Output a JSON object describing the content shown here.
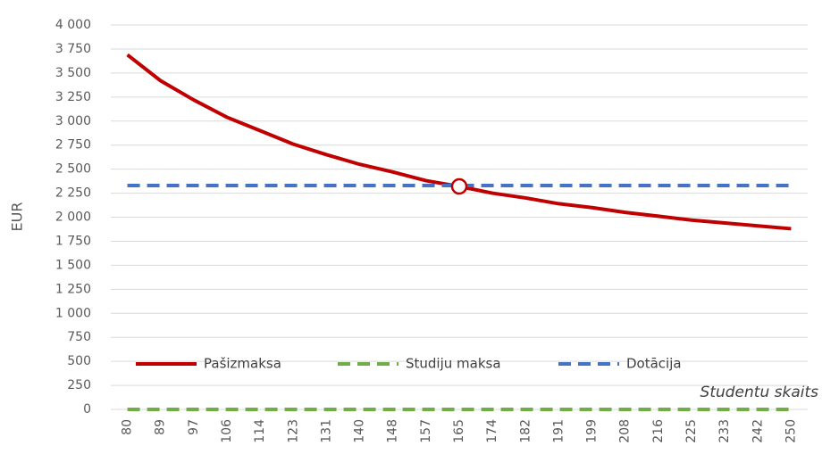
{
  "chart_data": {
    "type": "line",
    "y_label": "EUR",
    "x_label": "Studentu skaits",
    "categories": [
      "80",
      "89",
      "97",
      "106",
      "114",
      "123",
      "131",
      "140",
      "148",
      "157",
      "165",
      "174",
      "182",
      "191",
      "199",
      "208",
      "216",
      "225",
      "233",
      "242",
      "250"
    ],
    "series": [
      {
        "name": "Pašizmaksa",
        "color": "#c00000",
        "dashed": false,
        "values": [
          3690,
          3420,
          3220,
          3040,
          2900,
          2760,
          2650,
          2550,
          2470,
          2380,
          2320,
          2250,
          2200,
          2140,
          2100,
          2050,
          2010,
          1970,
          1940,
          1910,
          1880
        ]
      },
      {
        "name": "Studiju maksa",
        "color": "#70ad47",
        "dashed": true,
        "values": [
          0,
          0,
          0,
          0,
          0,
          0,
          0,
          0,
          0,
          0,
          0,
          0,
          0,
          0,
          0,
          0,
          0,
          0,
          0,
          0,
          0
        ]
      },
      {
        "name": "Dotācija",
        "color": "#4472c4",
        "dashed": true,
        "values": [
          2330,
          2330,
          2330,
          2330,
          2330,
          2330,
          2330,
          2330,
          2330,
          2330,
          2330,
          2330,
          2330,
          2330,
          2330,
          2330,
          2330,
          2330,
          2330,
          2330,
          2330
        ]
      }
    ],
    "highlight": {
      "series": 0,
      "index": 10
    },
    "ylim": [
      0,
      4000
    ],
    "yticks": [
      0,
      250,
      500,
      750,
      {
        "value": 1000,
        "label": "1 000"
      },
      {
        "value": 1250,
        "label": "1 250"
      },
      {
        "value": 1500,
        "label": "1 500"
      },
      {
        "value": 1750,
        "label": "1 750"
      },
      {
        "value": 2000,
        "label": "2 000"
      },
      {
        "value": 2250,
        "label": "2 250"
      },
      {
        "value": 2500,
        "label": "2 500"
      },
      {
        "value": 2750,
        "label": "2 750"
      },
      {
        "value": 3000,
        "label": "3 000"
      },
      {
        "value": 3250,
        "label": "3 250"
      },
      {
        "value": 3500,
        "label": "3 500"
      },
      {
        "value": 3750,
        "label": "3 750"
      },
      {
        "value": 4000,
        "label": "4 000"
      }
    ],
    "grid": true,
    "legend": "bottom-left"
  }
}
